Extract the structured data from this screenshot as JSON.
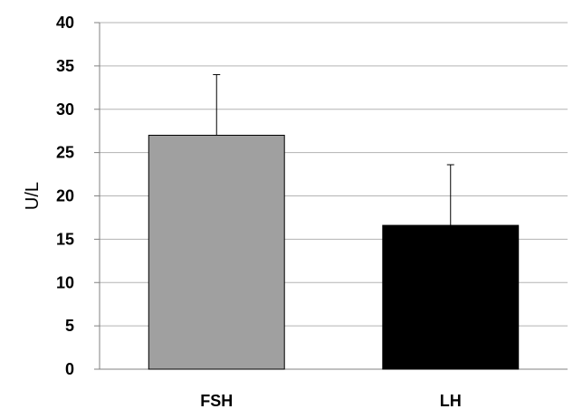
{
  "chart_data": {
    "type": "bar",
    "categories": [
      "FSH",
      "LH"
    ],
    "values": [
      27,
      16.6
    ],
    "error_upper": [
      34,
      23.6
    ],
    "xlabel": "",
    "ylabel": "U/L",
    "ylim": [
      0,
      40
    ],
    "yticks": [
      0,
      5,
      10,
      15,
      20,
      25,
      30,
      35,
      40
    ],
    "grid": true,
    "legend": "none",
    "colors": {
      "bars": [
        "#a0a0a0",
        "#000000"
      ],
      "bar_edge": "#000000",
      "grid": "#b3b3b3",
      "axis": "#808080",
      "error_bar": "#000000"
    }
  }
}
